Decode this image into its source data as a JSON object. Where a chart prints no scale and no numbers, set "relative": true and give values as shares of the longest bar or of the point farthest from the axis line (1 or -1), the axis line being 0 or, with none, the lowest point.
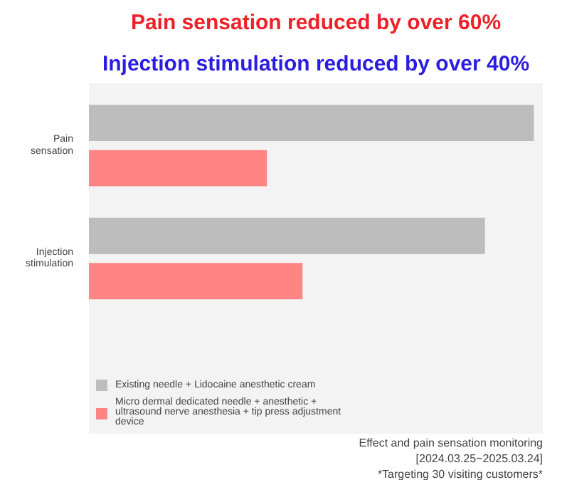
{
  "chart_data": {
    "type": "bar",
    "orientation": "horizontal",
    "relative": true,
    "title": "Pain sensation reduced by over 60%",
    "subtitle": "Injection stimulation reduced by over 40%",
    "categories": [
      "Pain sensation",
      "Injection stimulation"
    ],
    "series": [
      {
        "name": "Existing needle + Lidocaine anesthetic cream",
        "color": "#bdbdbd",
        "values": [
          1.0,
          0.89
        ]
      },
      {
        "name": "Micro dermal dedicated needle + anesthetic + ultrasound nerve anesthesia + tip press adjustment device",
        "color": "#ff8585",
        "values": [
          0.4,
          0.48
        ]
      }
    ],
    "legend": "bottom left",
    "grid": false,
    "annotations": [
      "Effect and pain sensation monitoring",
      "[2024.03.25~2025.03.24]",
      "*Targeting 30 visiting customers*"
    ]
  }
}
